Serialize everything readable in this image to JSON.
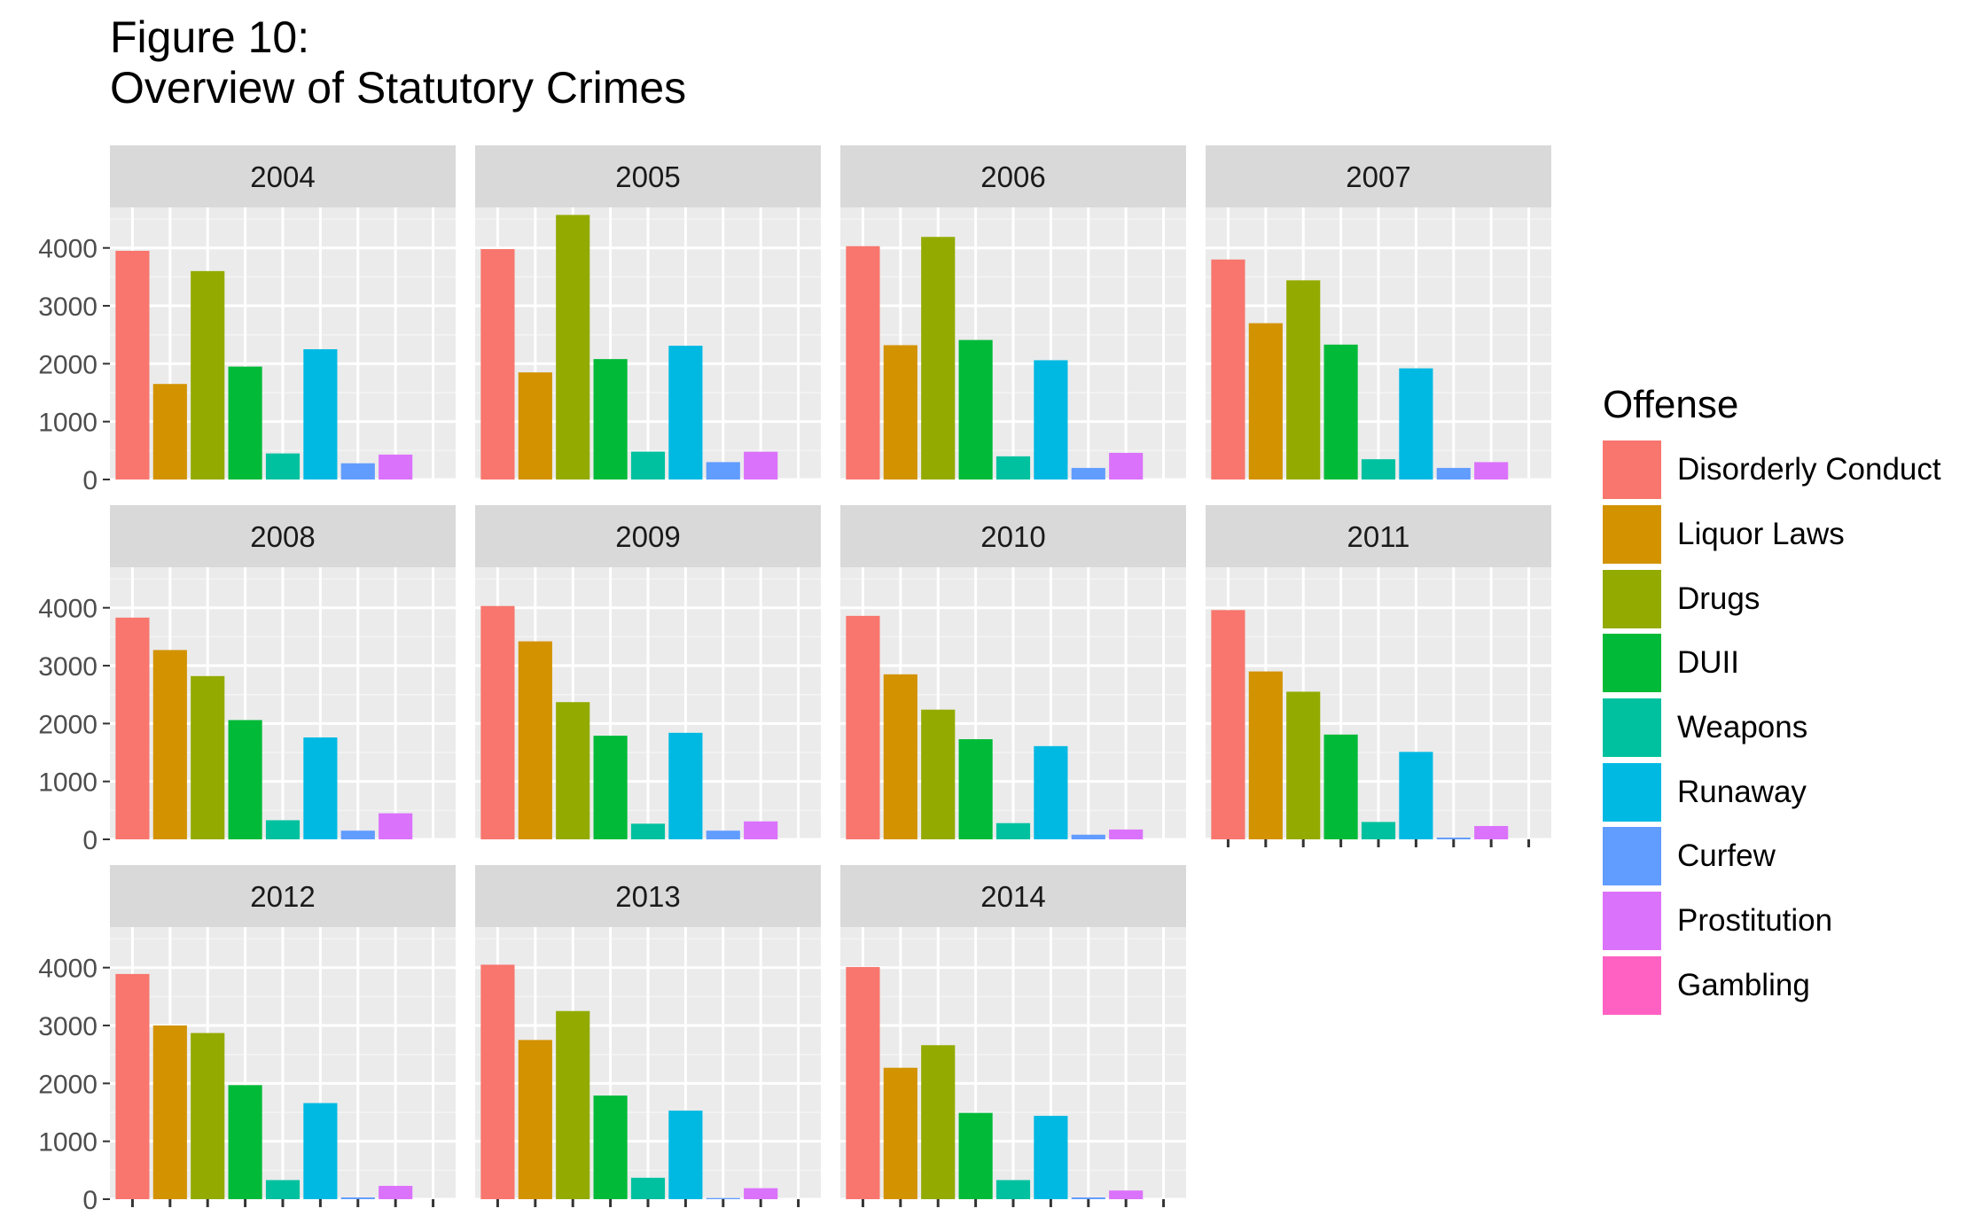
{
  "title": [
    "Figure 10:",
    "Overview of Statutory Crimes"
  ],
  "legend": {
    "title": "Offense",
    "entries": [
      {
        "label": "Disorderly Conduct",
        "color": "#F8766D"
      },
      {
        "label": "Liquor Laws",
        "color": "#D39200"
      },
      {
        "label": "Drugs",
        "color": "#93AA00"
      },
      {
        "label": "DUII",
        "color": "#00BA38"
      },
      {
        "label": "Weapons",
        "color": "#00C19F"
      },
      {
        "label": "Runaway",
        "color": "#00B9E3"
      },
      {
        "label": "Curfew",
        "color": "#619CFF"
      },
      {
        "label": "Prostitution",
        "color": "#DB72FB"
      },
      {
        "label": "Gambling",
        "color": "#FF61C3"
      }
    ]
  },
  "chart_data": {
    "type": "bar",
    "facet_by": "year",
    "categories": [
      "Disorderly Conduct",
      "Liquor Laws",
      "Drugs",
      "DUII",
      "Weapons",
      "Runaway",
      "Curfew",
      "Prostitution",
      "Gambling"
    ],
    "ylim": [
      0,
      4700
    ],
    "yticks": [
      0,
      1000,
      2000,
      3000,
      4000
    ],
    "grid": true,
    "legend_position": "right",
    "facets": [
      {
        "label": "2004",
        "values": [
          3950,
          1650,
          3600,
          1950,
          450,
          2250,
          280,
          430,
          0
        ]
      },
      {
        "label": "2005",
        "values": [
          3980,
          1850,
          4570,
          2080,
          480,
          2310,
          300,
          480,
          0
        ]
      },
      {
        "label": "2006",
        "values": [
          4030,
          2320,
          4190,
          2410,
          400,
          2060,
          200,
          460,
          0
        ]
      },
      {
        "label": "2007",
        "values": [
          3800,
          2700,
          3440,
          2330,
          350,
          1920,
          200,
          300,
          0
        ]
      },
      {
        "label": "2008",
        "values": [
          3830,
          3270,
          2820,
          2060,
          330,
          1760,
          150,
          450,
          0
        ]
      },
      {
        "label": "2009",
        "values": [
          4030,
          3420,
          2370,
          1790,
          270,
          1840,
          150,
          310,
          0
        ]
      },
      {
        "label": "2010",
        "values": [
          3860,
          2850,
          2240,
          1730,
          280,
          1610,
          80,
          170,
          0
        ]
      },
      {
        "label": "2011",
        "values": [
          3960,
          2900,
          2550,
          1810,
          300,
          1510,
          30,
          230,
          0
        ]
      },
      {
        "label": "2012",
        "values": [
          3890,
          3000,
          2870,
          1970,
          330,
          1660,
          30,
          230,
          0
        ]
      },
      {
        "label": "2013",
        "values": [
          4050,
          2750,
          3250,
          1790,
          370,
          1530,
          20,
          190,
          0
        ]
      },
      {
        "label": "2014",
        "values": [
          4010,
          2270,
          2660,
          1490,
          330,
          1440,
          30,
          150,
          0
        ]
      }
    ]
  }
}
